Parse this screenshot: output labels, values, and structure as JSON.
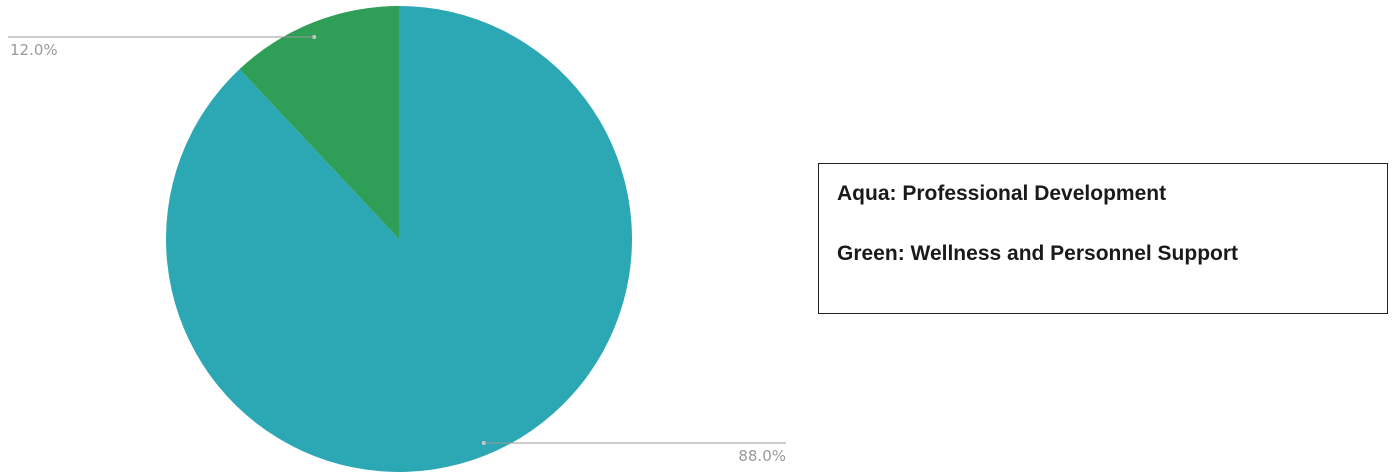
{
  "chart_data": {
    "type": "pie",
    "slices": [
      {
        "label": "Professional Development",
        "value": 88.0,
        "value_label": "88.0%",
        "color": "#2ca8b5"
      },
      {
        "label": "Wellness and Personnel Support",
        "value": 12.0,
        "value_label": "12.0%",
        "color": "#2f9e57"
      }
    ],
    "start_angle_deg": 0,
    "direction": "clockwise",
    "legend_placement": "right"
  },
  "legend": {
    "lines": [
      "Aqua: Professional Development",
      "Green: Wellness and Personnel Support"
    ]
  }
}
